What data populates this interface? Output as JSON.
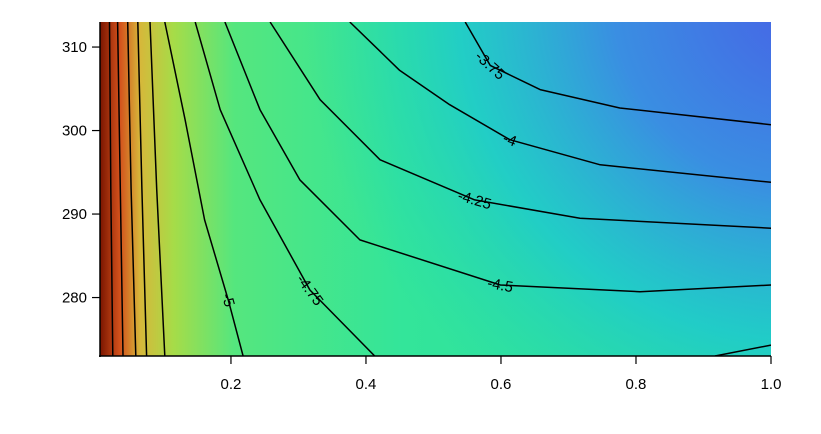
{
  "chart_data": {
    "type": "contour",
    "xlim": [
      0.006,
      1.0
    ],
    "ylim": [
      273,
      313
    ],
    "xticks": [
      0.2,
      0.4,
      0.6,
      0.8,
      {
        "value": 1.0,
        "label": "1.0"
      }
    ],
    "yticks": [
      280,
      290,
      300,
      310
    ],
    "line_color": "#000000",
    "series": [
      {
        "level": -3.75,
        "x": [
          0.547,
          0.584,
          0.658,
          0.776,
          1.0
        ],
        "y": [
          313,
          307.8,
          304.9,
          302.7,
          300.7
        ]
      },
      {
        "level": -4,
        "x": [
          0.376,
          0.45,
          0.524,
          0.613,
          0.747,
          1.0
        ],
        "y": [
          313,
          307.2,
          303.1,
          298.9,
          295.9,
          293.8
        ]
      },
      {
        "level": -4.25,
        "x": [
          0.258,
          0.332,
          0.421,
          0.561,
          0.717,
          1.0
        ],
        "y": [
          313,
          303.7,
          296.5,
          291.7,
          289.5,
          288.3
        ]
      },
      {
        "level": -4.5,
        "x": [
          0.191,
          0.243,
          0.302,
          0.391,
          0.599,
          0.806,
          1.0
        ],
        "y": [
          313,
          302.5,
          294.1,
          286.9,
          281.5,
          280.7,
          281.5
        ]
      },
      {
        "level": -4.75,
        "x": [
          0.147,
          0.184,
          0.243,
          0.317,
          0.413
        ],
        "y": [
          313,
          302.5,
          291.7,
          280.9,
          273
        ]
      },
      {
        "level": -5,
        "x": [
          0.102,
          0.132,
          0.161,
          0.196,
          0.218
        ],
        "y": [
          313,
          301.3,
          289.3,
          279.7,
          273
        ]
      },
      {
        "x": [
          0.08,
          0.09,
          0.102
        ],
        "y": [
          313,
          293,
          273
        ]
      },
      {
        "x": [
          0.062,
          0.068,
          0.075
        ],
        "y": [
          313,
          293,
          273
        ]
      },
      {
        "x": [
          0.047,
          0.052,
          0.059
        ],
        "y": [
          313,
          293,
          273
        ]
      },
      {
        "x": [
          0.032,
          0.036,
          0.04
        ],
        "y": [
          313,
          293,
          273
        ]
      },
      {
        "x": [
          0.02,
          0.022,
          0.025
        ],
        "y": [
          313,
          293,
          273
        ]
      },
      {
        "x": [
          0.917,
          1.0
        ],
        "y": [
          273,
          274.3
        ]
      }
    ]
  }
}
